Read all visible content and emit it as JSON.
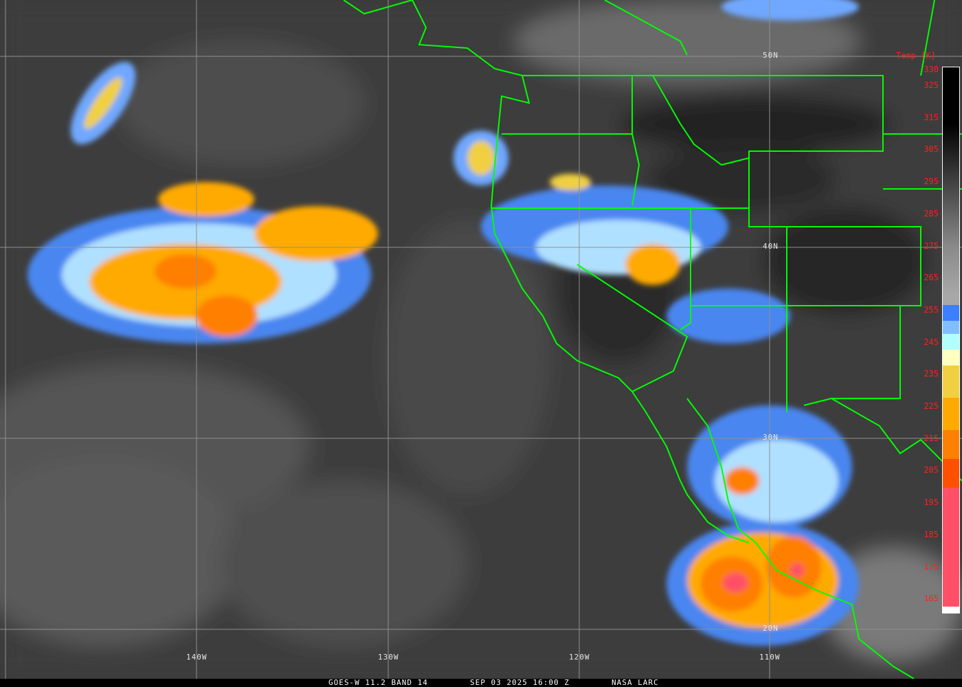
{
  "product": {
    "satellite": "GOES-W 11.2 BAND 14",
    "datetime": "SEP 03 2025 16:00 Z",
    "credit": "NASA LARC"
  },
  "grid": {
    "lat_labels": [
      "50N",
      "40N",
      "30N",
      "20N"
    ],
    "lon_labels": [
      "140W",
      "130W",
      "120W",
      "110W"
    ]
  },
  "colorbar": {
    "title": "Temp [K]",
    "labels": [
      "330",
      "325",
      "315",
      "305",
      "295",
      "285",
      "275",
      "265",
      "255",
      "245",
      "235",
      "225",
      "215",
      "205",
      "195",
      "185",
      "175",
      "165"
    ],
    "stops": [
      {
        "from": 330,
        "color": "#000000"
      },
      {
        "from": 275,
        "color": "#8a8a8a"
      },
      {
        "from": 260,
        "color": "#a8a8a8"
      },
      {
        "from": 257,
        "color": "#3a80ff"
      },
      {
        "from": 252,
        "color": "#80bfff"
      },
      {
        "from": 248,
        "color": "#b0ffff"
      },
      {
        "from": 243,
        "color": "#ffffc0"
      },
      {
        "from": 238,
        "color": "#f0d040"
      },
      {
        "from": 228,
        "color": "#ffaa00"
      },
      {
        "from": 218,
        "color": "#ff7f00"
      },
      {
        "from": 209,
        "color": "#ff5000"
      },
      {
        "from": 200,
        "color": "#ff5068"
      },
      {
        "from": 163,
        "color": "#ffffff"
      }
    ]
  },
  "colors": {
    "coastline": "#00ff00",
    "gridline": "#909090",
    "labels": "#ff2020"
  }
}
